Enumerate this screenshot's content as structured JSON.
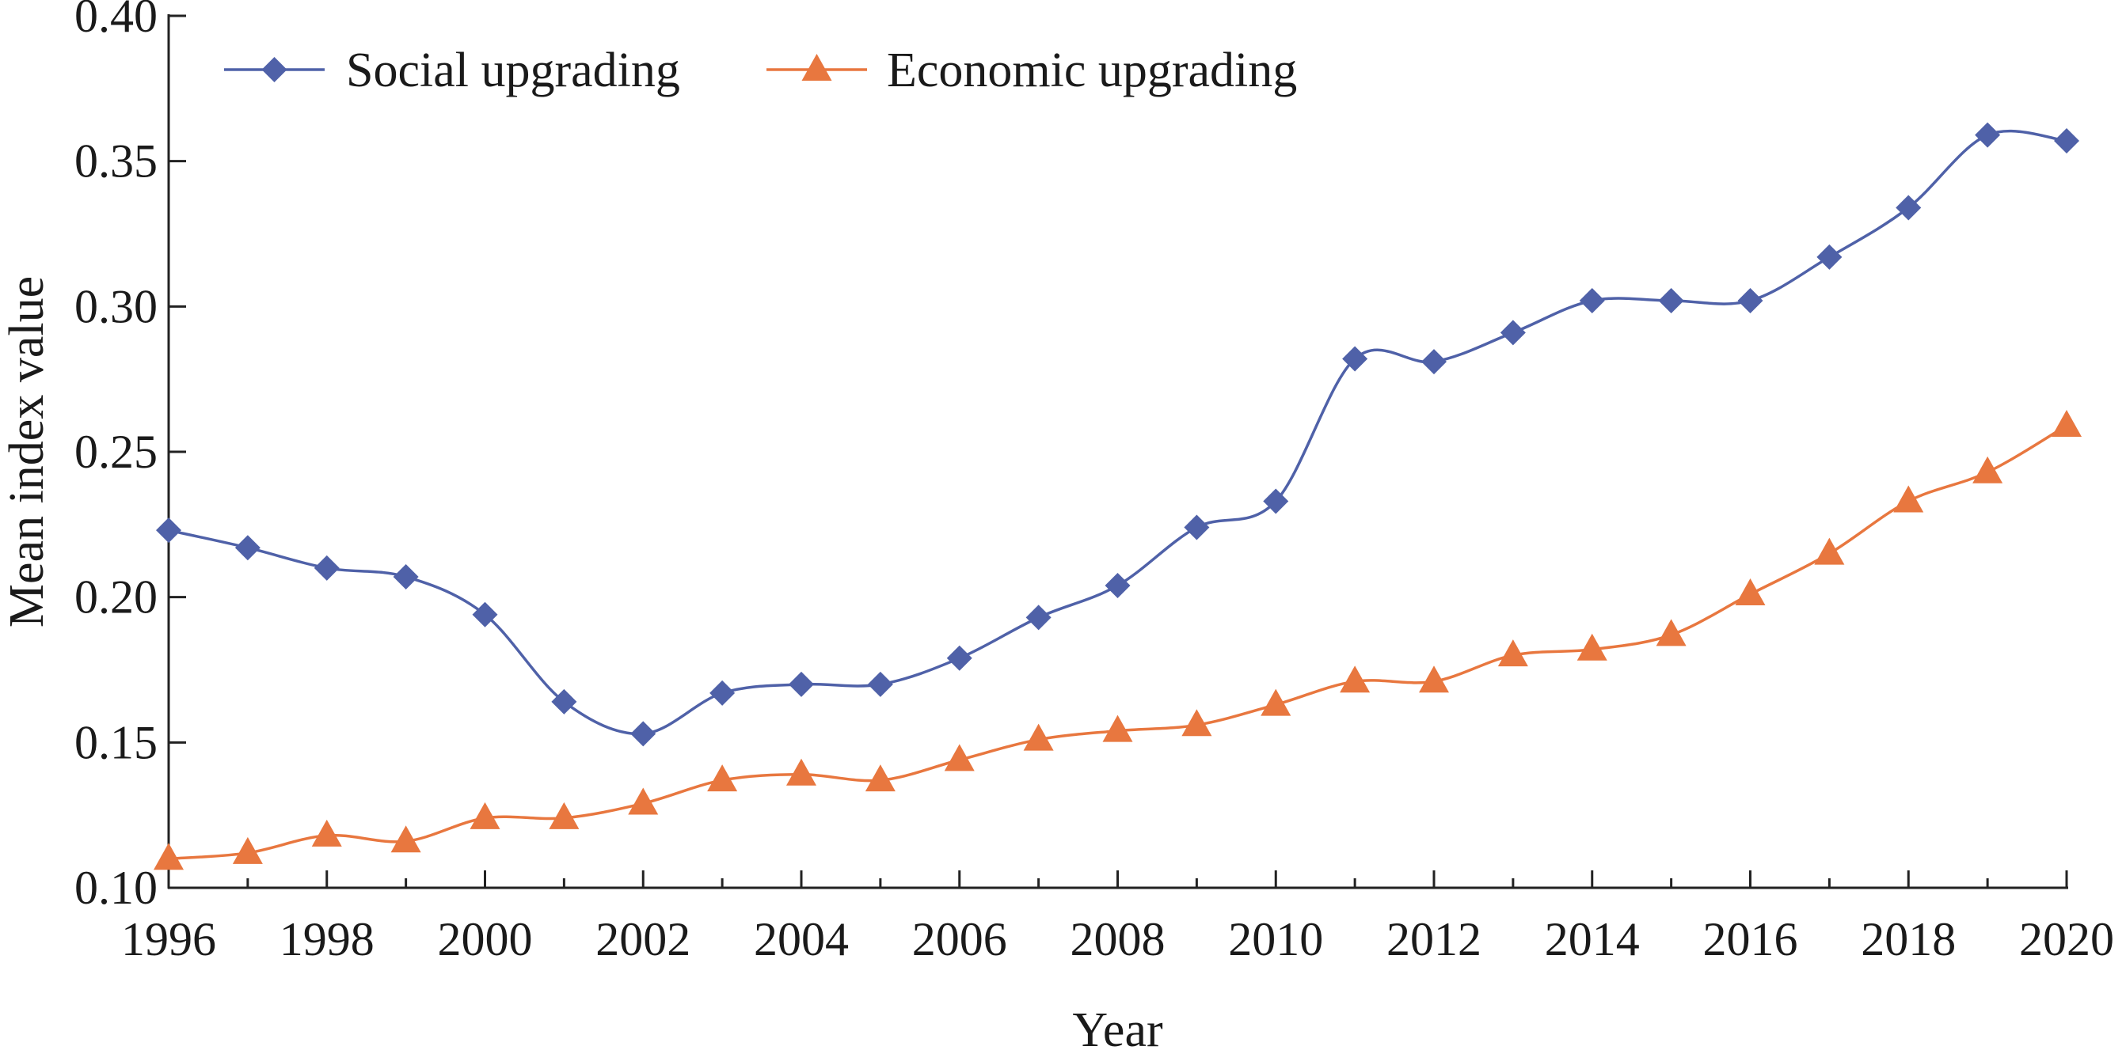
{
  "chart_data": {
    "type": "line",
    "xlabel": "Year",
    "ylabel": "Mean index value",
    "xlim": [
      1996,
      2020
    ],
    "ylim": [
      0.1,
      0.4
    ],
    "x_ticks": [
      1996,
      1998,
      2000,
      2002,
      2004,
      2006,
      2008,
      2010,
      2012,
      2014,
      2016,
      2018,
      2020
    ],
    "y_ticks": [
      0.1,
      0.15,
      0.2,
      0.25,
      0.3,
      0.35,
      0.4
    ],
    "y_tick_labels": [
      "0.10",
      "0.15",
      "0.20",
      "0.25",
      "0.30",
      "0.35",
      "0.40"
    ],
    "grid": false,
    "smooth": true,
    "legend": {
      "placement": "top-left",
      "orientation": "horizontal"
    },
    "x": [
      1996,
      1997,
      1998,
      1999,
      2000,
      2001,
      2002,
      2003,
      2004,
      2005,
      2006,
      2007,
      2008,
      2009,
      2010,
      2011,
      2012,
      2013,
      2014,
      2015,
      2016,
      2017,
      2018,
      2019,
      2020
    ],
    "series": [
      {
        "name": "Social upgrading",
        "color": "#4f61a8",
        "marker": "diamond",
        "values": [
          0.223,
          0.217,
          0.21,
          0.207,
          0.194,
          0.164,
          0.153,
          0.167,
          0.17,
          0.17,
          0.179,
          0.193,
          0.204,
          0.224,
          0.233,
          0.282,
          0.281,
          0.291,
          0.302,
          0.302,
          0.302,
          0.317,
          0.334,
          0.359,
          0.357
        ]
      },
      {
        "name": "Economic upgrading",
        "color": "#e8773f",
        "marker": "triangle",
        "values": [
          0.11,
          0.112,
          0.118,
          0.116,
          0.124,
          0.124,
          0.129,
          0.137,
          0.139,
          0.137,
          0.144,
          0.151,
          0.154,
          0.156,
          0.163,
          0.171,
          0.171,
          0.18,
          0.182,
          0.187,
          0.201,
          0.215,
          0.233,
          0.243,
          0.259
        ]
      }
    ]
  }
}
